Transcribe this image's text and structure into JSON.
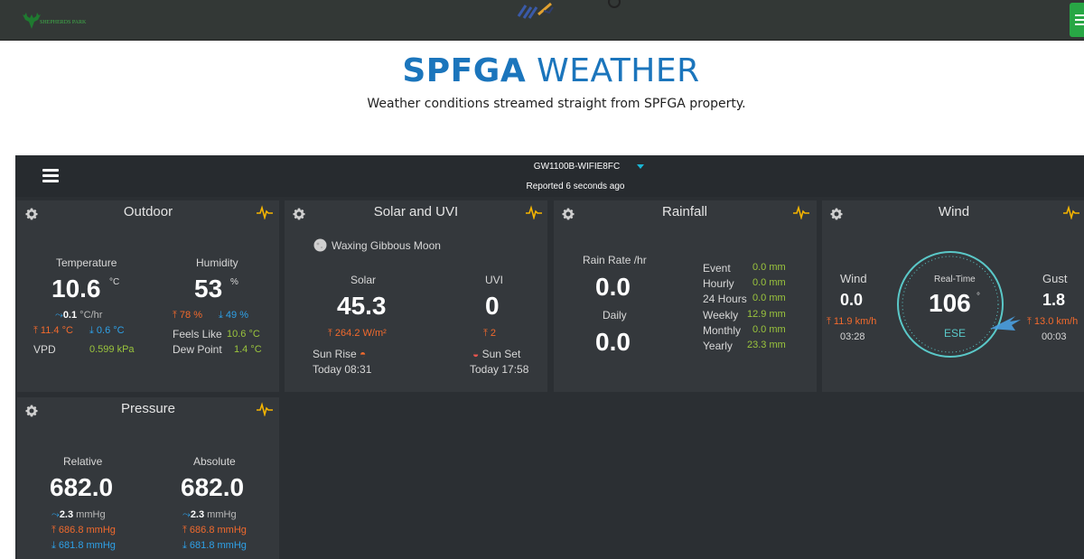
{
  "site": {
    "logo_text": "SHEPHERDS PARK",
    "title_bold": "SPFGA",
    "title_light": " WEATHER",
    "subtitle": "Weather conditions streamed straight from SPFGA property."
  },
  "dashboard": {
    "device": "GW1100B-WIFIE8FC",
    "reported": "Reported 6 seconds ago"
  },
  "outdoor": {
    "title": "Outdoor",
    "temp_label": "Temperature",
    "temp": "10.6",
    "temp_unit": "°C",
    "temp_rate": "0.1",
    "temp_rate_unit": "°C/hr",
    "temp_high": "11.4 °C",
    "temp_low": "0.6 °C",
    "vpd_label": "VPD",
    "vpd": "0.599 kPa",
    "hum_label": "Humidity",
    "hum": "53",
    "hum_unit": "%",
    "hum_high": "78 %",
    "hum_low": "49 %",
    "feels_label": "Feels Like",
    "feels": "10.6 °C",
    "dew_label": "Dew Point",
    "dew": "1.4 °C"
  },
  "solar": {
    "title": "Solar and UVI",
    "moon": "Waxing Gibbous Moon",
    "solar_label": "Solar",
    "solar": "45.3",
    "solar_high": "264.2 W/m²",
    "uvi_label": "UVI",
    "uvi": "0",
    "uvi_high": "2",
    "sunrise_label": "Sun Rise",
    "sunrise": "Today 08:31",
    "sunset_label": "Sun Set",
    "sunset": "Today 17:58"
  },
  "rain": {
    "title": "Rainfall",
    "rate_label": "Rain Rate /hr",
    "rate": "0.0",
    "daily_label": "Daily",
    "daily": "0.0",
    "rows": [
      {
        "label": "Event",
        "value": "0.0 mm"
      },
      {
        "label": "Hourly",
        "value": "0.0 mm"
      },
      {
        "label": "24 Hours",
        "value": "0.0 mm"
      },
      {
        "label": "Weekly",
        "value": "12.9 mm"
      },
      {
        "label": "Monthly",
        "value": "0.0 mm"
      },
      {
        "label": "Yearly",
        "value": "23.3 mm"
      }
    ]
  },
  "wind": {
    "title": "Wind",
    "wind_label": "Wind",
    "wind": "0.0",
    "wind_high": "11.9 km/h",
    "wind_time": "03:28",
    "realtime_label": "Real-Time",
    "direction": "106",
    "direction_unit": "°",
    "direction_deg": 106,
    "cardinal": "ESE",
    "gust_label": "Gust",
    "gust": "1.8",
    "gust_high": "13.0 km/h",
    "gust_time": "00:03"
  },
  "pressure": {
    "title": "Pressure",
    "rel_label": "Relative",
    "rel": "682.0",
    "rel_rate": "2.3",
    "rel_rate_unit": "mmHg",
    "rel_high": "686.8 mmHg",
    "rel_low": "681.8 mmHg",
    "abs_label": "Absolute",
    "abs": "682.0",
    "abs_rate": "2.3",
    "abs_rate_unit": "mmHg",
    "abs_high": "686.8 mmHg",
    "abs_low": "681.8 mmHg"
  },
  "colors": {
    "accent_blue": "#1b75bc",
    "high": "#f26a2d",
    "low": "#2ea1e8",
    "value_green": "#9bc53d",
    "pulse": "#f5b400",
    "compass": "#5ac8c8"
  }
}
